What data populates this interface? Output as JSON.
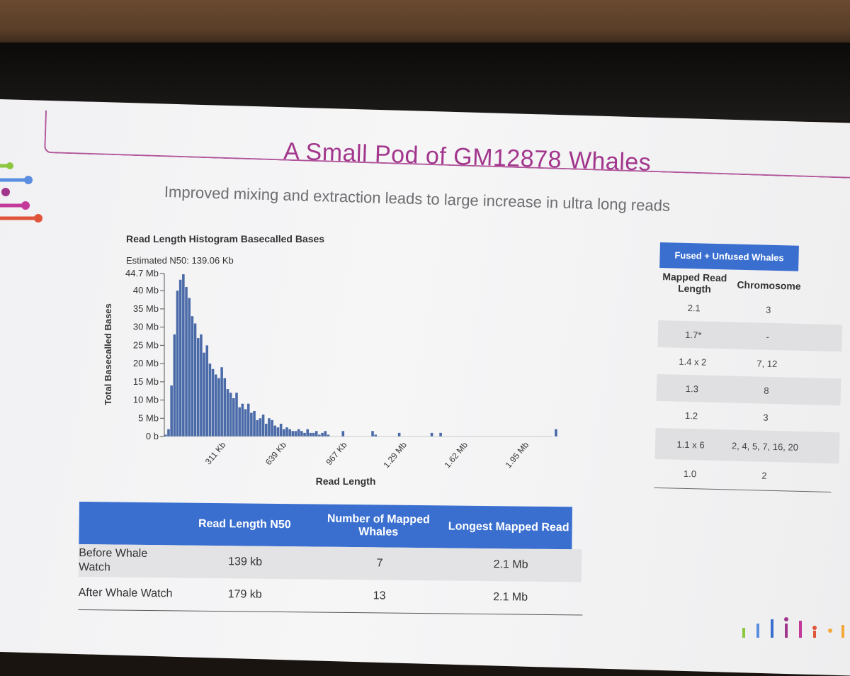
{
  "slide": {
    "title": "A Small Pod of GM12878 Whales",
    "subtitle": "Improved mixing and extraction leads to large increase in ultra long reads"
  },
  "chart_data": {
    "type": "bar",
    "title": "Read Length Histogram Basecalled Bases",
    "annotation": "Estimated N50: 139.06 Kb",
    "xlabel": "Read Length",
    "ylabel": "Total Basecalled Bases",
    "y_tick_labels": [
      "0 b",
      "5 Mb",
      "10 Mb",
      "15 Mb",
      "20 Mb",
      "25 Mb",
      "30 Mb",
      "35 Mb",
      "40 Mb",
      "44.7 Mb"
    ],
    "y_tick_values": [
      0,
      5,
      10,
      15,
      20,
      25,
      30,
      35,
      40,
      44.7
    ],
    "x_tick_labels": [
      "311 Kb",
      "639 Kb",
      "967 Kb",
      "1.29 Mb",
      "1.62 Mb",
      "1.95 Mb"
    ],
    "x_tick_values_kb": [
      311,
      639,
      967,
      1290,
      1620,
      1950
    ],
    "xlim_kb": [
      0,
      2100
    ],
    "ylim_mb": [
      0,
      44.7
    ],
    "bin_width_kb": 16,
    "values_mb": [
      0.5,
      2,
      14,
      28,
      40,
      43,
      44.5,
      41,
      38,
      33,
      31,
      27,
      28,
      23,
      25,
      20,
      18.5,
      17,
      16,
      19,
      16,
      13,
      12,
      10.5,
      12,
      8,
      9,
      7.5,
      9,
      6.5,
      7,
      4.5,
      5,
      6,
      3.5,
      5,
      4.5,
      3,
      2.5,
      3.5,
      2,
      2.5,
      2,
      1.5,
      1.5,
      2,
      1.5,
      1,
      2,
      1,
      1,
      1.5,
      0.5,
      1,
      1.5,
      0.5,
      0,
      0,
      0,
      0,
      1.5,
      0,
      0,
      0,
      0,
      0,
      0,
      0,
      0,
      0,
      1.5,
      0.5,
      0,
      0,
      0,
      0,
      0,
      0,
      0,
      1,
      0,
      0,
      0,
      0,
      0,
      0,
      0,
      0,
      0,
      0,
      1,
      0,
      0,
      1,
      0,
      0,
      0,
      0,
      0,
      0,
      0,
      0,
      0,
      0,
      0,
      0,
      0,
      0,
      0,
      0,
      0,
      0,
      0,
      0,
      0,
      0,
      0,
      0,
      0,
      0,
      0,
      0,
      0,
      0,
      0,
      0,
      0,
      0,
      0,
      0,
      0,
      0,
      2
    ]
  },
  "fused_table": {
    "header": "Fused + Unfused Whales",
    "col1": "Mapped Read Length",
    "col2": "Chromosome",
    "rows": [
      {
        "length": "2.1",
        "chromosome": "3"
      },
      {
        "length": "1.7*",
        "chromosome": "-"
      },
      {
        "length": "1.4 x 2",
        "chromosome": "7, 12"
      },
      {
        "length": "1.3",
        "chromosome": "8"
      },
      {
        "length": "1.2",
        "chromosome": "3"
      },
      {
        "length": "1.1 x 6",
        "chromosome": "2, 4, 5, 7, 16, 20"
      },
      {
        "length": "1.0",
        "chromosome": "2"
      }
    ]
  },
  "summary_table": {
    "headers": [
      "",
      "Read Length N50",
      "Number of Mapped Whales",
      "Longest Mapped Read"
    ],
    "rows": [
      {
        "label": "Before Whale Watch",
        "n50": "139 kb",
        "whales": "7",
        "longest": "2.1 Mb"
      },
      {
        "label": "After Whale Watch",
        "n50": "179 kb",
        "whales": "13",
        "longest": "2.1 Mb"
      }
    ]
  },
  "colors": {
    "bar": "#4a6aa8",
    "accent": "#a2368c",
    "table_header": "#3a6fd0"
  }
}
